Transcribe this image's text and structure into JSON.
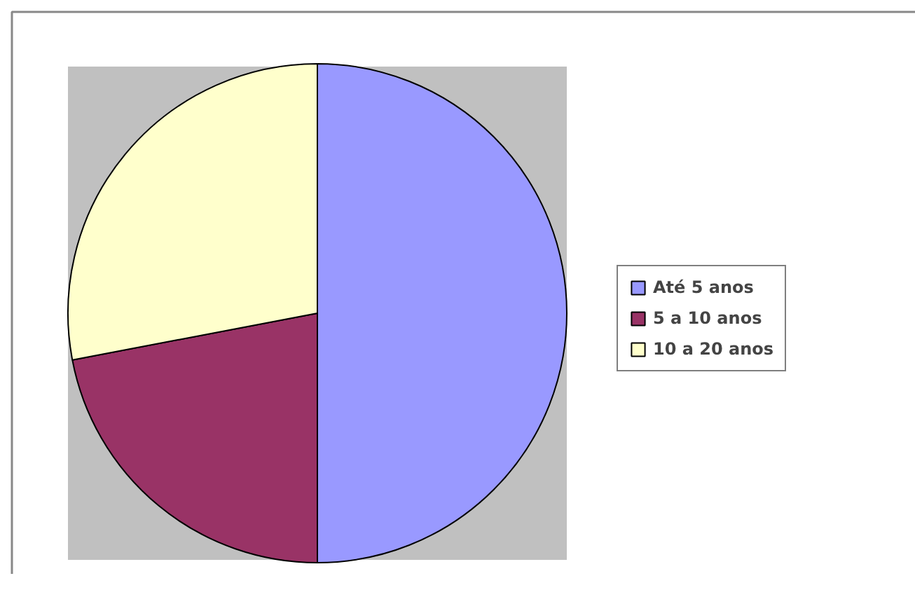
{
  "chart_data": {
    "type": "pie",
    "categories": [
      "Até 5 anos",
      "5 a 10 anos",
      "10 a 20 anos"
    ],
    "values": [
      50,
      22,
      28
    ],
    "colors": [
      "#9999ff",
      "#993366",
      "#ffffcc"
    ],
    "legend": "right"
  }
}
